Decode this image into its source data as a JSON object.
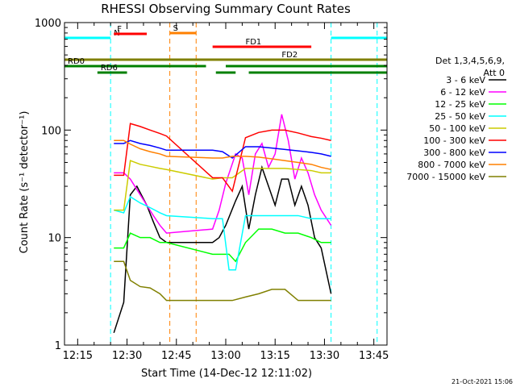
{
  "chart_data": {
    "type": "line",
    "title": "RHESSI Observing Summary Count Rates",
    "xlabel": "Start Time (14-Dec-12 12:11:02)",
    "ylabel": "Count Rate (s⁻¹ detector⁻¹)",
    "y_scale": "log",
    "ylim": [
      1,
      1000
    ],
    "y_ticks": [
      {
        "v": 1,
        "label": "1"
      },
      {
        "v": 10,
        "label": "10"
      },
      {
        "v": 100,
        "label": "100"
      },
      {
        "v": 1000,
        "label": "1000"
      }
    ],
    "xlim": [
      "12:11",
      "13:49"
    ],
    "x_ticks": [
      "12:15",
      "12:30",
      "12:45",
      "13:00",
      "13:15",
      "13:30",
      "13:45"
    ],
    "grid": false,
    "legend_header": [
      "Det 1,3,4,5,6,9,",
      "Att 0"
    ],
    "legend_position": "right",
    "series": [
      {
        "name": "3 - 6 keV",
        "color": "#000000",
        "x": [
          "12:26",
          "12:29",
          "12:31",
          "12:33",
          "12:36",
          "12:38",
          "12:40",
          "12:42",
          "12:56",
          "12:58",
          "13:00",
          "13:03",
          "13:05",
          "13:07",
          "13:09",
          "13:11",
          "13:13",
          "13:15",
          "13:17",
          "13:19",
          "13:21",
          "13:23",
          "13:25",
          "13:27",
          "13:29",
          "13:32"
        ],
        "y": [
          1.3,
          2.5,
          25,
          30,
          20,
          14,
          10,
          9,
          9,
          10,
          13,
          22,
          30,
          12,
          25,
          45,
          30,
          20,
          35,
          35,
          20,
          30,
          20,
          10,
          8,
          3
        ]
      },
      {
        "name": "6 - 12 keV",
        "color": "#ff00ff",
        "x": [
          "12:26",
          "12:29",
          "12:31",
          "12:33",
          "12:36",
          "12:38",
          "12:40",
          "12:42",
          "12:56",
          "12:58",
          "13:00",
          "13:03",
          "13:05",
          "13:07",
          "13:09",
          "13:11",
          "13:13",
          "13:15",
          "13:17",
          "13:19",
          "13:21",
          "13:23",
          "13:25",
          "13:27",
          "13:29",
          "13:32"
        ],
        "y": [
          40,
          40,
          35,
          28,
          20,
          16,
          13,
          11,
          12,
          18,
          32,
          60,
          55,
          25,
          60,
          75,
          45,
          60,
          140,
          80,
          35,
          55,
          40,
          25,
          18,
          13
        ]
      },
      {
        "name": "12 - 25 keV",
        "color": "#00ff00",
        "x": [
          "12:26",
          "12:29",
          "12:31",
          "12:34",
          "12:37",
          "12:40",
          "12:42",
          "12:56",
          "12:59",
          "13:01",
          "13:03",
          "13:06",
          "13:10",
          "13:14",
          "13:18",
          "13:22",
          "13:26",
          "13:29",
          "13:32"
        ],
        "y": [
          8,
          8,
          11,
          10,
          10,
          9,
          9,
          7,
          7,
          7,
          6,
          9,
          12,
          12,
          11,
          11,
          10,
          9,
          9
        ]
      },
      {
        "name": "25 - 50 keV",
        "color": "#00ffff",
        "x": [
          "12:26",
          "12:29",
          "12:31",
          "12:34",
          "12:37",
          "12:40",
          "12:42",
          "12:56",
          "12:59",
          "13:01",
          "13:03",
          "13:06",
          "13:10",
          "13:14",
          "13:18",
          "13:22",
          "13:26",
          "13:29",
          "13:32"
        ],
        "y": [
          18,
          17,
          24,
          21,
          19,
          17,
          16,
          15,
          15,
          5,
          5,
          16,
          16,
          16,
          16,
          16,
          15,
          15,
          15
        ]
      },
      {
        "name": "50 - 100 keV",
        "color": "#cccc00",
        "x": [
          "12:26",
          "12:29",
          "12:31",
          "12:34",
          "12:37",
          "12:40",
          "12:42",
          "12:56",
          "12:59",
          "13:02",
          "13:06",
          "13:10",
          "13:14",
          "13:18",
          "13:22",
          "13:26",
          "13:29",
          "13:32"
        ],
        "y": [
          18,
          18,
          52,
          48,
          46,
          44,
          43,
          35,
          36,
          36,
          44,
          44,
          44,
          44,
          43,
          42,
          40,
          40
        ]
      },
      {
        "name": "100 - 300 keV",
        "color": "#ff0000",
        "x": [
          "12:26",
          "12:29",
          "12:31",
          "12:34",
          "12:37",
          "12:40",
          "12:42",
          "12:56",
          "12:59",
          "13:02",
          "13:06",
          "13:10",
          "13:14",
          "13:18",
          "13:22",
          "13:26",
          "13:29",
          "13:32"
        ],
        "y": [
          38,
          38,
          115,
          108,
          100,
          93,
          88,
          36,
          36,
          27,
          85,
          95,
          100,
          100,
          94,
          87,
          84,
          80
        ]
      },
      {
        "name": "300 - 800 keV",
        "color": "#0000ff",
        "x": [
          "12:26",
          "12:29",
          "12:31",
          "12:34",
          "12:37",
          "12:40",
          "12:42",
          "12:56",
          "12:59",
          "13:02",
          "13:06",
          "13:10",
          "13:14",
          "13:18",
          "13:22",
          "13:26",
          "13:29",
          "13:32"
        ],
        "y": [
          75,
          75,
          80,
          75,
          72,
          68,
          65,
          65,
          63,
          55,
          70,
          70,
          68,
          66,
          64,
          62,
          60,
          57
        ]
      },
      {
        "name": "800 - 7000 keV",
        "color": "#ff8000",
        "x": [
          "12:26",
          "12:29",
          "12:31",
          "12:34",
          "12:37",
          "12:40",
          "12:42",
          "12:56",
          "12:59",
          "13:02",
          "13:06",
          "13:10",
          "13:14",
          "13:18",
          "13:22",
          "13:26",
          "13:29",
          "13:32"
        ],
        "y": [
          80,
          80,
          74,
          67,
          63,
          60,
          57,
          55,
          55,
          57,
          57,
          56,
          54,
          52,
          50,
          48,
          45,
          43
        ]
      },
      {
        "name": "7000 - 15000 keV",
        "color": "#808000",
        "x": [
          "12:26",
          "12:29",
          "12:31",
          "12:34",
          "12:37",
          "12:40",
          "12:42",
          "12:56",
          "12:59",
          "13:02",
          "13:06",
          "13:10",
          "13:14",
          "13:18",
          "13:22",
          "13:26",
          "13:29",
          "13:32"
        ],
        "y": [
          6,
          6,
          4,
          3.5,
          3.4,
          3,
          2.6,
          2.6,
          2.6,
          2.6,
          2.8,
          3,
          3.3,
          3.3,
          2.6,
          2.6,
          2.6,
          2.6
        ]
      }
    ],
    "flag_bars": [
      {
        "label": "N",
        "color": "#00ffff",
        "segments": [
          [
            "12:11",
            "12:25"
          ],
          [
            "13:32",
            "13:49"
          ]
        ]
      },
      {
        "label": "F",
        "color": "#ff0000",
        "segments": [
          [
            "12:26",
            "12:36"
          ]
        ]
      },
      {
        "label": "S",
        "color": "#ff8000",
        "segments": [
          [
            "12:43",
            "12:51"
          ]
        ]
      },
      {
        "label": "FD1",
        "color": "#ff0000",
        "segments": [
          [
            "12:56",
            "13:26"
          ]
        ]
      },
      {
        "label": "FD2",
        "color": "#808000",
        "segments": [
          [
            "12:11",
            "13:49"
          ]
        ]
      },
      {
        "label": "RD0",
        "color": "#008000",
        "segments": [
          [
            "12:11",
            "12:54"
          ],
          [
            "13:00",
            "13:49"
          ]
        ]
      },
      {
        "label": "RD6",
        "color": "#008000",
        "segments": [
          [
            "12:21",
            "12:30"
          ],
          [
            "12:57",
            "13:03"
          ],
          [
            "13:07",
            "13:49"
          ]
        ]
      }
    ],
    "vlines": [
      {
        "x": "12:25",
        "color": "#00ffff"
      },
      {
        "x": "12:43",
        "color": "#ff8000"
      },
      {
        "x": "12:51",
        "color": "#ff8000"
      },
      {
        "x": "13:32",
        "color": "#00ffff"
      },
      {
        "x": "13:46",
        "color": "#00ffff"
      }
    ],
    "footer": "21-Oct-2021 15:06"
  }
}
